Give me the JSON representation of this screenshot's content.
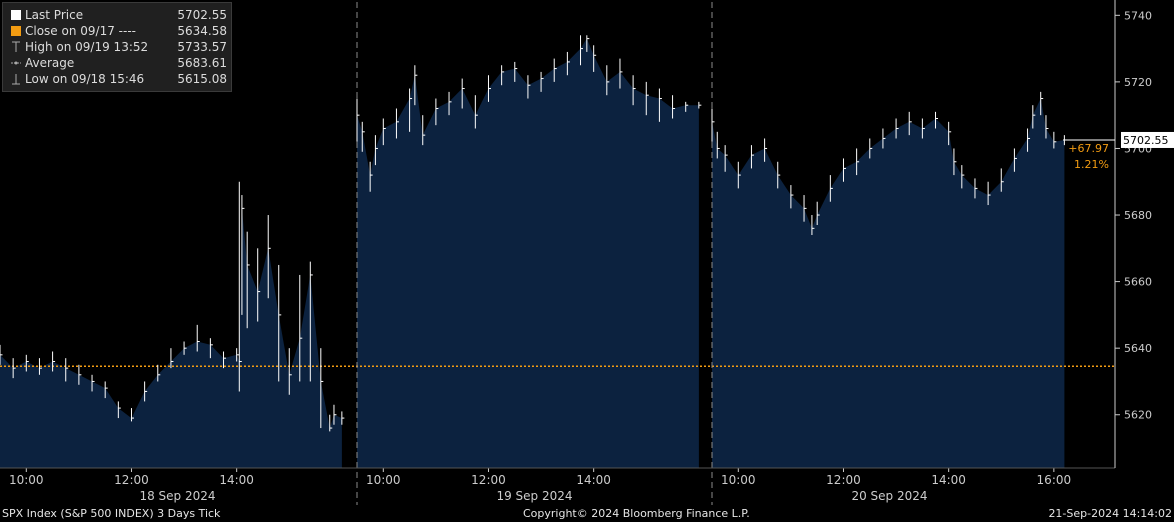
{
  "legend": {
    "items": [
      {
        "label": "Last Price",
        "value": "5702.55",
        "marker": "square",
        "color": "#ffffff"
      },
      {
        "label": "Close on 09/17 ----",
        "value": "5634.58",
        "marker": "square",
        "color": "#f39c12"
      },
      {
        "label": "High on 09/19 13:52",
        "value": "5733.57",
        "marker": "high-icon",
        "color": "#aaaaaa"
      },
      {
        "label": "Average",
        "value": "5683.61",
        "marker": "average-icon",
        "color": "#aaaaaa"
      },
      {
        "label": "Low on 09/18 15:46",
        "value": "5615.08",
        "marker": "low-icon",
        "color": "#aaaaaa"
      }
    ]
  },
  "footer": {
    "left": "SPX Index (S&P 500 INDEX) 3 Days  Tick",
    "center": "Copyright© 2024 Bloomberg Finance L.P.",
    "right": "21-Sep-2024 14:14:02"
  },
  "chart_data": {
    "type": "area",
    "ylim": [
      5604,
      5744
    ],
    "yticks": [
      5620,
      5640,
      5660,
      5680,
      5700,
      5720,
      5740
    ],
    "grid": false,
    "reference_close": 5634.58,
    "last_price_label": "5702.55",
    "change_labels": [
      "+67.97",
      "1.21%"
    ],
    "colors": {
      "fill": "#0c223f",
      "line": "#ffffff",
      "close": "#f39c12",
      "change": "#f39c12",
      "axis": "#cccccc"
    },
    "days": [
      {
        "date_label": "18 Sep 2024",
        "tick_labels": [
          "10:00",
          "12:00",
          "14:00"
        ],
        "tick_hours": [
          10,
          12,
          14
        ],
        "x_hours": [
          9.5,
          9.75,
          10.0,
          10.25,
          10.5,
          10.75,
          11.0,
          11.25,
          11.5,
          11.75,
          12.0,
          12.25,
          12.5,
          12.75,
          13.0,
          13.25,
          13.5,
          13.75,
          14.0,
          14.05,
          14.1,
          14.2,
          14.4,
          14.6,
          14.8,
          15.0,
          15.2,
          15.4,
          15.6,
          15.77,
          15.85,
          16.0
        ],
        "close": [
          5638,
          5634,
          5636,
          5634,
          5636,
          5634,
          5632,
          5630,
          5628,
          5622,
          5619,
          5627,
          5632,
          5636,
          5640,
          5642,
          5641,
          5637,
          5638,
          5636,
          5682,
          5665,
          5657,
          5670,
          5650,
          5632,
          5643,
          5662,
          5630,
          5616,
          5620,
          5619
        ],
        "high": [
          5641,
          5637,
          5638,
          5637,
          5639,
          5637,
          5635,
          5632,
          5630,
          5624,
          5622,
          5630,
          5635,
          5640,
          5642,
          5647,
          5643,
          5639,
          5640,
          5690,
          5686,
          5675,
          5670,
          5680,
          5665,
          5640,
          5662,
          5666,
          5640,
          5620,
          5623,
          5621
        ],
        "low": [
          5635,
          5631,
          5633,
          5632,
          5633,
          5630,
          5629,
          5627,
          5625,
          5619,
          5618,
          5624,
          5630,
          5634,
          5638,
          5639,
          5637,
          5634,
          5636,
          5627,
          5650,
          5646,
          5648,
          5655,
          5630,
          5626,
          5630,
          5630,
          5616,
          5615,
          5617,
          5617
        ]
      },
      {
        "date_label": "19 Sep 2024",
        "tick_labels": [
          "10:00",
          "12:00",
          "14:00"
        ],
        "tick_hours": [
          10,
          12,
          14
        ],
        "x_hours": [
          9.5,
          9.6,
          9.75,
          9.85,
          10.0,
          10.25,
          10.5,
          10.6,
          10.75,
          11.0,
          11.25,
          11.5,
          11.75,
          12.0,
          12.25,
          12.5,
          12.75,
          13.0,
          13.25,
          13.5,
          13.75,
          13.87,
          14.0,
          14.25,
          14.5,
          14.75,
          15.0,
          15.25,
          15.5,
          15.75,
          16.0
        ],
        "close": [
          5710,
          5705,
          5692,
          5700,
          5706,
          5708,
          5715,
          5722,
          5704,
          5712,
          5714,
          5718,
          5710,
          5718,
          5723,
          5724,
          5719,
          5721,
          5724,
          5726,
          5730,
          5733,
          5728,
          5720,
          5723,
          5718,
          5716,
          5715,
          5712,
          5713,
          5713
        ],
        "high": [
          5715,
          5708,
          5696,
          5704,
          5709,
          5712,
          5718,
          5725,
          5710,
          5715,
          5717,
          5721,
          5716,
          5722,
          5725,
          5726,
          5722,
          5723,
          5727,
          5729,
          5734,
          5734,
          5731,
          5725,
          5727,
          5722,
          5720,
          5718,
          5716,
          5714,
          5714
        ],
        "low": [
          5702,
          5699,
          5687,
          5695,
          5701,
          5703,
          5705,
          5713,
          5701,
          5707,
          5710,
          5712,
          5706,
          5714,
          5719,
          5720,
          5715,
          5717,
          5720,
          5722,
          5725,
          5729,
          5723,
          5716,
          5718,
          5713,
          5710,
          5708,
          5709,
          5711,
          5712
        ]
      },
      {
        "date_label": "20 Sep 2024",
        "tick_labels": [
          "10:00",
          "12:00",
          "14:00",
          "16:00"
        ],
        "tick_hours": [
          10,
          12,
          14,
          16
        ],
        "x_hours": [
          9.5,
          9.6,
          9.75,
          10.0,
          10.25,
          10.5,
          10.75,
          11.0,
          11.25,
          11.4,
          11.5,
          11.75,
          12.0,
          12.25,
          12.5,
          12.75,
          13.0,
          13.25,
          13.5,
          13.75,
          14.0,
          14.1,
          14.25,
          14.5,
          14.75,
          15.0,
          15.25,
          15.5,
          15.6,
          15.75,
          15.85,
          16.0,
          16.2
        ],
        "close": [
          5708,
          5700,
          5698,
          5692,
          5698,
          5700,
          5692,
          5686,
          5682,
          5676,
          5680,
          5688,
          5694,
          5696,
          5700,
          5703,
          5706,
          5708,
          5706,
          5709,
          5705,
          5696,
          5692,
          5688,
          5686,
          5690,
          5697,
          5703,
          5710,
          5715,
          5706,
          5702,
          5702.55
        ],
        "high": [
          5712,
          5705,
          5701,
          5696,
          5701,
          5703,
          5696,
          5689,
          5686,
          5680,
          5684,
          5692,
          5697,
          5700,
          5703,
          5706,
          5709,
          5711,
          5709,
          5711,
          5708,
          5700,
          5695,
          5691,
          5690,
          5694,
          5700,
          5706,
          5713,
          5717,
          5710,
          5705,
          5704
        ],
        "low": [
          5702,
          5697,
          5693,
          5688,
          5694,
          5696,
          5688,
          5682,
          5678,
          5674,
          5677,
          5684,
          5690,
          5692,
          5697,
          5700,
          5703,
          5704,
          5703,
          5706,
          5701,
          5692,
          5688,
          5685,
          5683,
          5687,
          5693,
          5699,
          5706,
          5710,
          5703,
          5700,
          5701
        ]
      }
    ]
  }
}
